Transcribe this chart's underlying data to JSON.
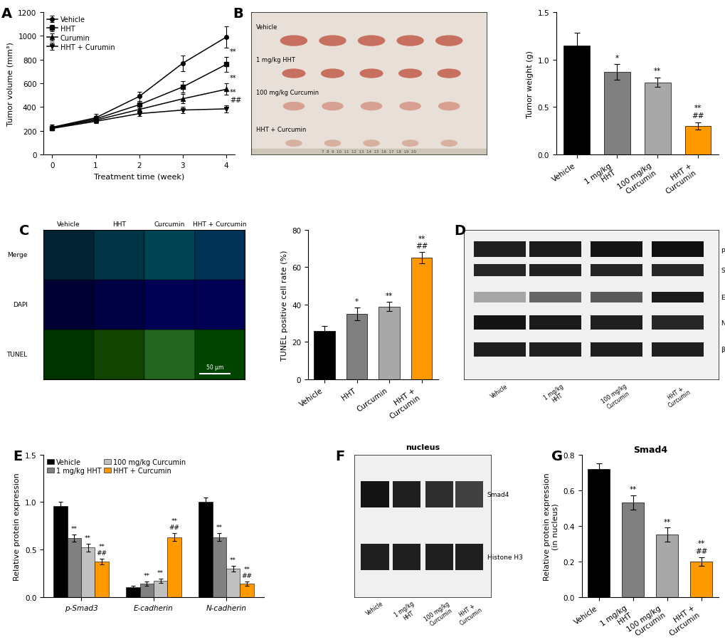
{
  "panel_A": {
    "weeks": [
      0,
      1,
      2,
      3,
      4
    ],
    "vehicle_mean": [
      230,
      310,
      490,
      770,
      990
    ],
    "vehicle_err": [
      20,
      30,
      40,
      65,
      90
    ],
    "hht_mean": [
      225,
      300,
      420,
      570,
      760
    ],
    "hht_err": [
      15,
      22,
      32,
      50,
      65
    ],
    "curcumin_mean": [
      225,
      290,
      380,
      470,
      550
    ],
    "curcumin_err": [
      12,
      20,
      28,
      38,
      48
    ],
    "combo_mean": [
      220,
      280,
      345,
      375,
      385
    ],
    "combo_err": [
      10,
      16,
      22,
      28,
      32
    ],
    "ylabel": "Tumor volume (mm³)",
    "xlabel": "Treatment time (week)",
    "ylim": [
      0,
      1200
    ],
    "yticks": [
      0,
      200,
      400,
      600,
      800,
      1000,
      1200
    ],
    "legend_labels": [
      "Vehicle",
      "HHT",
      "Curumin",
      "HHT + Curumin"
    ],
    "sig_labels_week4": [
      "**",
      "**",
      "**\n##"
    ]
  },
  "panel_B_bar": {
    "categories": [
      "Vehicle",
      "1 mg/kg HHT",
      "100 mg/kg Curcumin",
      "HHT + Curcumin"
    ],
    "values": [
      1.15,
      0.87,
      0.76,
      0.3
    ],
    "errors": [
      0.13,
      0.08,
      0.05,
      0.04
    ],
    "colors": [
      "#000000",
      "#808080",
      "#a8a8a8",
      "#FF9900"
    ],
    "ylabel": "Tumor weight (g)",
    "ylim": [
      0,
      1.5
    ],
    "yticks": [
      0.0,
      0.5,
      1.0,
      1.5
    ],
    "sig_labels": [
      "",
      "*",
      "**",
      "**\n##"
    ]
  },
  "panel_C_bar": {
    "categories": [
      "Vehicle",
      "HHT",
      "Curcumin",
      "HHT + Curcumin"
    ],
    "values": [
      26,
      35,
      39,
      65
    ],
    "errors": [
      2.5,
      3.5,
      2.5,
      3.0
    ],
    "colors": [
      "#000000",
      "#808080",
      "#a8a8a8",
      "#FF9900"
    ],
    "ylabel": "TUNEL positive cell rate (%)",
    "ylim": [
      0,
      80
    ],
    "yticks": [
      0,
      20,
      40,
      60,
      80
    ],
    "sig_labels": [
      "",
      "*",
      "**",
      "**\n##"
    ]
  },
  "panel_E": {
    "groups": [
      "p-Smad3",
      "E-cadherin",
      "N-cadherin"
    ],
    "vehicle_vals": [
      0.96,
      0.1,
      1.0
    ],
    "hht_vals": [
      0.62,
      0.14,
      0.63
    ],
    "curcumin_vals": [
      0.52,
      0.17,
      0.3
    ],
    "combo_vals": [
      0.37,
      0.63,
      0.14
    ],
    "vehicle_err": [
      0.04,
      0.015,
      0.05
    ],
    "hht_err": [
      0.04,
      0.025,
      0.04
    ],
    "curcumin_err": [
      0.04,
      0.025,
      0.03
    ],
    "combo_err": [
      0.03,
      0.04,
      0.02
    ],
    "colors": [
      "#000000",
      "#808080",
      "#c0c0c0",
      "#FF9900"
    ],
    "ylabel": "Relative protein expression",
    "ylim": [
      0,
      1.5
    ],
    "yticks": [
      0.0,
      0.5,
      1.0,
      1.5
    ],
    "legend_labels": [
      "Vehicle",
      "1 mg/kg HHT",
      "100 mg/kg Curcumin",
      "HHT + Curcumin"
    ],
    "sig_labels_psmad3": [
      "**",
      "**",
      "**\n##"
    ],
    "sig_labels_ecad": [
      "**",
      "**",
      "**\n##"
    ],
    "sig_labels_ncad": [
      "**",
      "**",
      "**\n##"
    ]
  },
  "panel_G": {
    "categories": [
      "Vehicle",
      "1 mg/kg HHT",
      "100 mg/kg Curcumin",
      "HHT + Curcumin"
    ],
    "values": [
      0.72,
      0.53,
      0.35,
      0.2
    ],
    "errors": [
      0.03,
      0.04,
      0.04,
      0.025
    ],
    "colors": [
      "#000000",
      "#808080",
      "#a8a8a8",
      "#FF9900"
    ],
    "ylabel": "Relative protein expression\n(in nucleus)",
    "ylim": [
      0,
      0.8
    ],
    "yticks": [
      0.0,
      0.2,
      0.4,
      0.6,
      0.8
    ],
    "title": "Smad4",
    "sig_labels": [
      "",
      "**",
      "**",
      "**\n##"
    ]
  },
  "colors": {
    "black": "#000000",
    "gray1": "#808080",
    "gray2": "#a8a8a8",
    "orange": "#FF9900",
    "background": "#ffffff",
    "photo_bg": "#e8e0d8",
    "wb_bg": "#d8d8d8",
    "tunel_green": "#00aa00",
    "dapi_blue": "#0000cc",
    "merge_cyan": "#004488"
  },
  "font_sizes": {
    "panel_label": 14,
    "axis_label": 8,
    "tick_label": 7.5,
    "legend": 7,
    "sig_label": 8,
    "title": 9
  }
}
